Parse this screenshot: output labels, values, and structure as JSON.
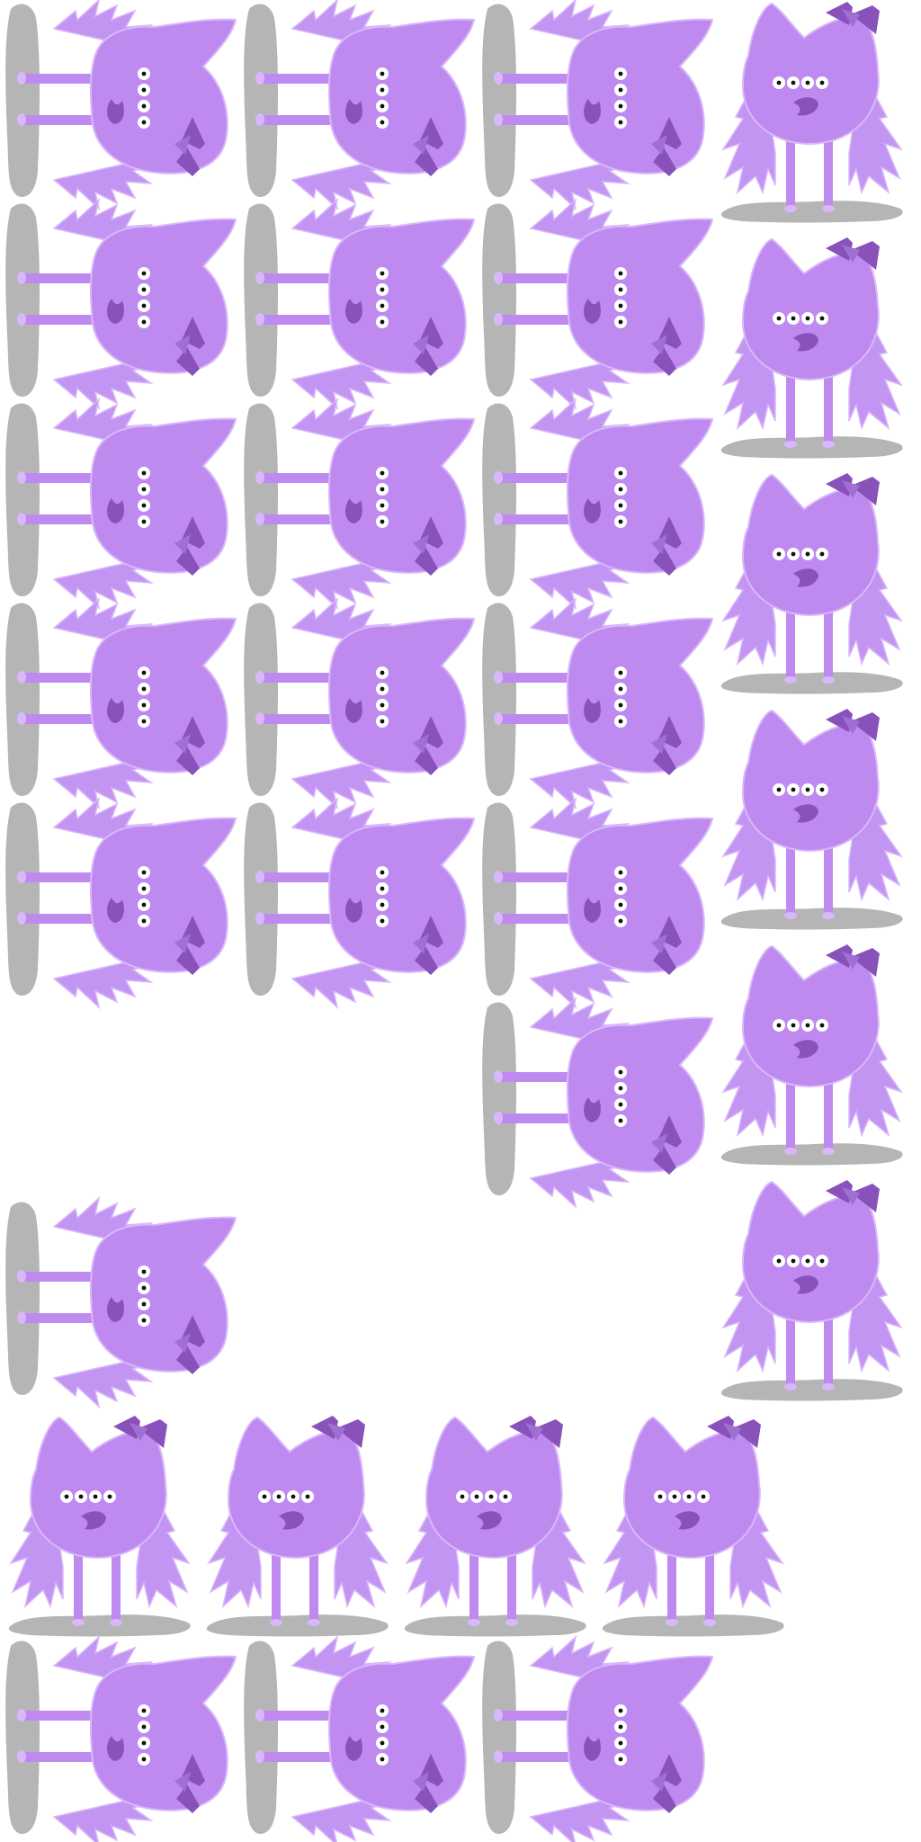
{
  "sprite_sheet": {
    "subject": "purple-fuzzy-monster",
    "colors": {
      "body": "#be8af0",
      "fur": "#c295f3",
      "outline": "#d9b8fa",
      "dark": "#8852ba",
      "shadow": "#b5b5b5",
      "eye_white": "#ffffff",
      "pupil": "#111111"
    },
    "frame_count": 30,
    "pose_counts": {
      "standing": 10,
      "sideways": 20
    }
  }
}
